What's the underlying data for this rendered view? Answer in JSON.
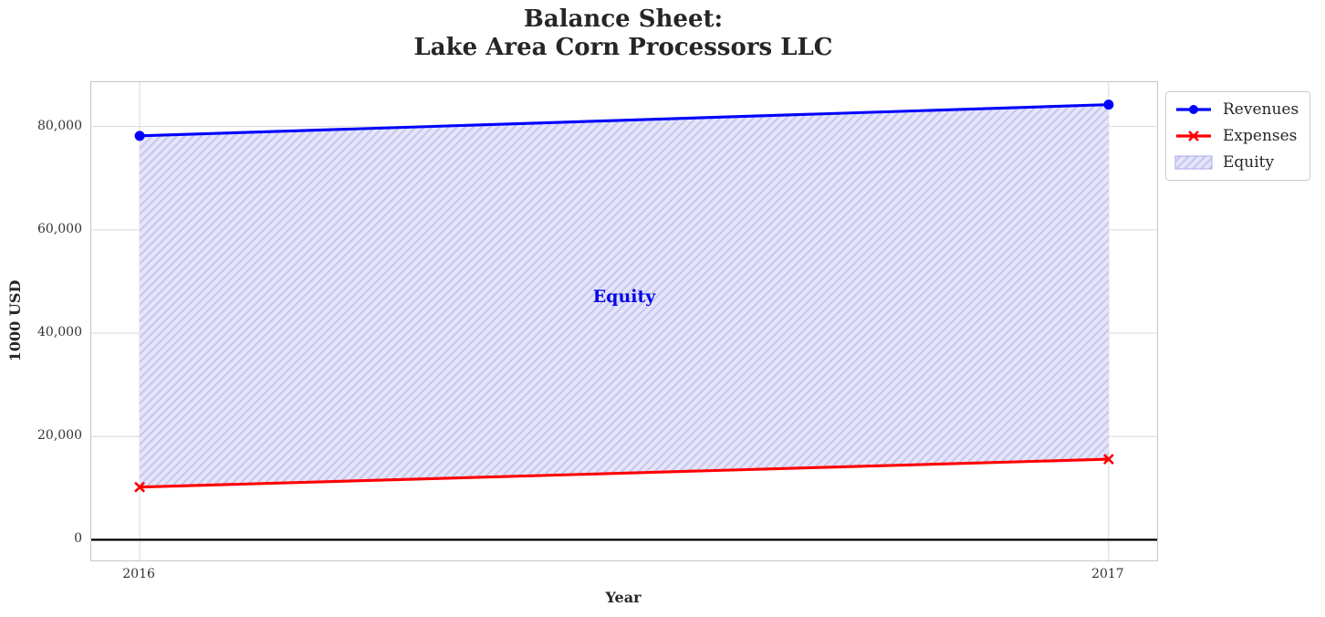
{
  "chart_data": {
    "type": "line",
    "title": "Balance Sheet: Lake Area Corn Processors LLC",
    "title_lines": [
      "Balance Sheet:",
      "Lake Area Corn Processors LLC"
    ],
    "xlabel": "Year",
    "ylabel": "1000 USD",
    "x": [
      2016,
      2017
    ],
    "series": [
      {
        "name": "Revenues",
        "values": [
          78200,
          84250
        ],
        "color": "#0000ff",
        "marker": "circle"
      },
      {
        "name": "Expenses",
        "values": [
          10200,
          15600
        ],
        "color": "#ff0000",
        "marker": "x"
      }
    ],
    "area": {
      "name": "Equity",
      "between": [
        "Revenues",
        "Expenses"
      ],
      "fill_color": "#e6e6fa",
      "hatch_color": "#c7c7f0",
      "hatch_style": "/"
    },
    "annotation": {
      "text": "Equity",
      "x": 2016.5,
      "y": 47000,
      "color": "#0707e8"
    },
    "xticks": [
      2016,
      2017
    ],
    "xtick_labels": [
      "2016",
      "2017"
    ],
    "yticks": [
      0,
      20000,
      40000,
      60000,
      80000
    ],
    "ytick_labels": [
      "0",
      "20,000",
      "40,000",
      "60,000",
      "80,000"
    ],
    "xlim": [
      2015.95,
      2017.05
    ],
    "ylim": [
      -4000,
      88600
    ],
    "zero_line": 0,
    "grid": true,
    "grid_color": "#d9d9d9",
    "legend": {
      "position": "outside-top-right",
      "entries": [
        "Revenues",
        "Expenses",
        "Equity"
      ]
    }
  }
}
